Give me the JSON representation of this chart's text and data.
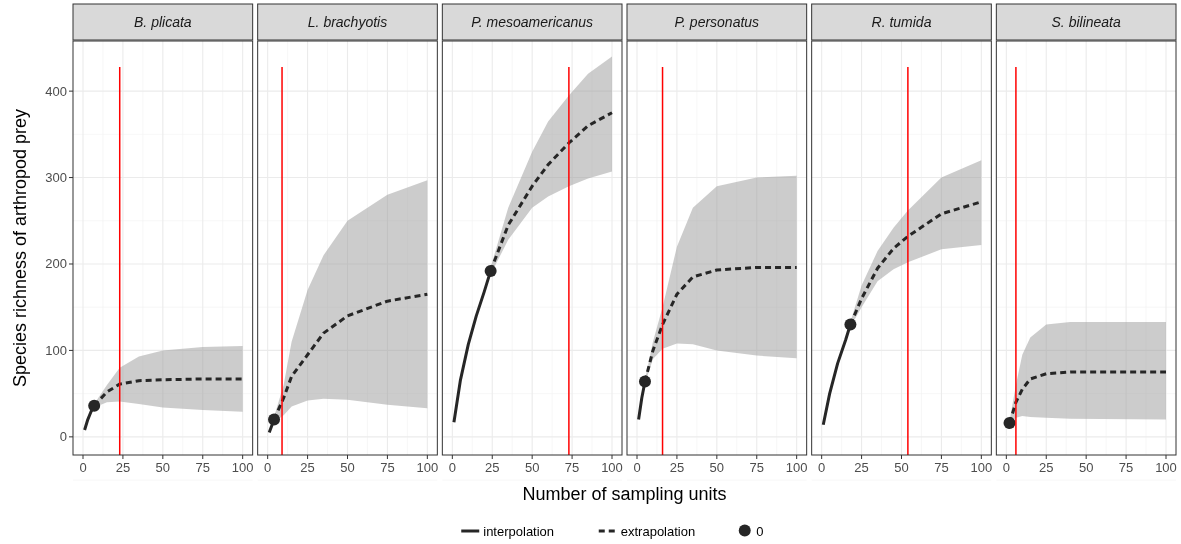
{
  "chart_data": [
    {
      "type": "line",
      "title": "B. plicata",
      "ylabel": "Species richness of arthropod prey",
      "xlim": [
        0,
        100
      ],
      "xticks": [
        0,
        25,
        50,
        75,
        100
      ],
      "ylim": [
        -21,
        458
      ],
      "yticks": [
        0,
        100,
        200,
        300,
        400
      ],
      "grid": true,
      "legend": "bottom",
      "series": [
        {
          "name": "interpolation",
          "line_style": "solid",
          "color": "#262626",
          "x": [
            1,
            3,
            5,
            7
          ],
          "values": [
            8,
            20,
            29,
            36
          ]
        },
        {
          "name": "extrapolation",
          "line_style": "dashed",
          "color": "#262626",
          "x": [
            7,
            15,
            23,
            35,
            50,
            75,
            100
          ],
          "values": [
            36,
            52,
            61,
            65,
            66,
            67,
            67
          ],
          "lower": [
            34,
            40,
            41,
            38,
            34,
            31,
            29
          ],
          "upper": [
            38,
            60,
            80,
            93,
            100,
            104,
            105
          ]
        },
        {
          "name": "0",
          "type": "scatter",
          "marker": "circle",
          "color": "#262626",
          "x": [
            7
          ],
          "values": [
            36
          ]
        }
      ],
      "ref_lines": [
        {
          "axis": "x",
          "value": 23,
          "color": "#ff0000"
        }
      ]
    },
    {
      "type": "line",
      "title": "L. brachyotis",
      "xlim": [
        0,
        100
      ],
      "xticks": [
        0,
        25,
        50,
        75,
        100
      ],
      "ylim": [
        -21,
        458
      ],
      "yticks": [
        0,
        100,
        200,
        300,
        400
      ],
      "grid": true,
      "tick_labels": "x",
      "series": [
        {
          "line_style": "solid",
          "color": "#262626",
          "x": [
            1,
            4
          ],
          "values": [
            5,
            20
          ]
        },
        {
          "line_style": "dashed",
          "color": "#262626",
          "x": [
            4,
            10,
            15,
            25,
            35,
            50,
            75,
            100
          ],
          "values": [
            20,
            45,
            70,
            95,
            120,
            140,
            157,
            165
          ],
          "lower": [
            17,
            25,
            35,
            42,
            44,
            43,
            37,
            33
          ],
          "upper": [
            23,
            60,
            110,
            170,
            210,
            250,
            280,
            297
          ]
        },
        {
          "type": "scatter",
          "marker": "circle",
          "color": "#262626",
          "x": [
            4
          ],
          "values": [
            20
          ]
        }
      ],
      "ref_lines": [
        {
          "axis": "x",
          "value": 9,
          "color": "#ff0000"
        }
      ]
    },
    {
      "type": "line",
      "title": "P. mesoamericanus",
      "xlabel": "Number of sampling units",
      "xlim": [
        0,
        100
      ],
      "xticks": [
        0,
        25,
        50,
        75,
        100
      ],
      "ylim": [
        -21,
        458
      ],
      "yticks": [
        0,
        100,
        200,
        300,
        400
      ],
      "grid": true,
      "tick_labels": "x",
      "series": [
        {
          "line_style": "solid",
          "color": "#262626",
          "x": [
            1,
            5,
            10,
            15,
            20,
            24
          ],
          "values": [
            17,
            65,
            107,
            140,
            168,
            192
          ]
        },
        {
          "line_style": "dashed",
          "color": "#262626",
          "x": [
            24,
            35,
            50,
            60,
            73,
            85,
            100
          ],
          "values": [
            192,
            245,
            290,
            315,
            340,
            360,
            375
          ],
          "lower": [
            188,
            228,
            265,
            278,
            290,
            299,
            307
          ],
          "upper": [
            196,
            265,
            330,
            365,
            395,
            420,
            440
          ]
        },
        {
          "type": "scatter",
          "marker": "circle",
          "color": "#262626",
          "x": [
            24
          ],
          "values": [
            192
          ]
        }
      ],
      "ref_lines": [
        {
          "axis": "x",
          "value": 73,
          "color": "#ff0000"
        }
      ]
    },
    {
      "type": "line",
      "title": "P. personatus",
      "xlim": [
        0,
        100
      ],
      "xticks": [
        0,
        25,
        50,
        75,
        100
      ],
      "ylim": [
        -21,
        458
      ],
      "yticks": [
        0,
        100,
        200,
        300,
        400
      ],
      "grid": true,
      "tick_labels": "x",
      "series": [
        {
          "line_style": "solid",
          "color": "#262626",
          "x": [
            1,
            3,
            5
          ],
          "values": [
            20,
            45,
            64
          ]
        },
        {
          "line_style": "dashed",
          "color": "#262626",
          "x": [
            5,
            10,
            16,
            25,
            35,
            50,
            75,
            100
          ],
          "values": [
            64,
            100,
            130,
            165,
            185,
            193,
            196,
            196
          ],
          "lower": [
            62,
            90,
            102,
            108,
            107,
            100,
            94,
            91
          ],
          "upper": [
            66,
            110,
            150,
            220,
            265,
            290,
            300,
            302
          ]
        },
        {
          "type": "scatter",
          "marker": "circle",
          "color": "#262626",
          "x": [
            5
          ],
          "values": [
            64
          ]
        }
      ],
      "ref_lines": [
        {
          "axis": "x",
          "value": 16,
          "color": "#ff0000"
        }
      ]
    },
    {
      "type": "line",
      "title": "R. tumida",
      "xlim": [
        0,
        100
      ],
      "xticks": [
        0,
        25,
        50,
        75,
        100
      ],
      "ylim": [
        -21,
        458
      ],
      "yticks": [
        0,
        100,
        200,
        300,
        400
      ],
      "grid": true,
      "tick_labels": "x",
      "series": [
        {
          "line_style": "solid",
          "color": "#262626",
          "x": [
            1,
            5,
            10,
            15,
            18
          ],
          "values": [
            14,
            50,
            85,
            112,
            130
          ]
        },
        {
          "line_style": "dashed",
          "color": "#262626",
          "x": [
            18,
            25,
            35,
            45,
            54,
            75,
            100
          ],
          "values": [
            130,
            160,
            195,
            218,
            232,
            258,
            272
          ],
          "lower": [
            127,
            150,
            180,
            194,
            202,
            217,
            222
          ],
          "upper": [
            133,
            175,
            215,
            242,
            262,
            300,
            320
          ]
        },
        {
          "type": "scatter",
          "marker": "circle",
          "color": "#262626",
          "x": [
            18
          ],
          "values": [
            130
          ]
        }
      ],
      "ref_lines": [
        {
          "axis": "x",
          "value": 54,
          "color": "#ff0000"
        }
      ]
    },
    {
      "type": "line",
      "title": "S. bilineata",
      "xlim": [
        0,
        100
      ],
      "xticks": [
        0,
        25,
        50,
        75,
        100
      ],
      "ylim": [
        -21,
        458
      ],
      "yticks": [
        0,
        100,
        200,
        300,
        400
      ],
      "grid": true,
      "tick_labels": "x",
      "series": [
        {
          "line_style": "solid",
          "color": "#262626",
          "x": [
            1,
            2
          ],
          "values": [
            10,
            16
          ]
        },
        {
          "line_style": "dashed",
          "color": "#262626",
          "x": [
            2,
            6,
            10,
            15,
            25,
            40,
            100
          ],
          "values": [
            16,
            40,
            55,
            67,
            73,
            75,
            75
          ],
          "lower": [
            14,
            22,
            24,
            23,
            22,
            21,
            20
          ],
          "upper": [
            18,
            60,
            95,
            115,
            130,
            133,
            133
          ]
        },
        {
          "type": "scatter",
          "marker": "circle",
          "color": "#262626",
          "x": [
            2
          ],
          "values": [
            16
          ]
        }
      ],
      "ref_lines": [
        {
          "axis": "x",
          "value": 6,
          "color": "#ff0000"
        }
      ]
    }
  ]
}
